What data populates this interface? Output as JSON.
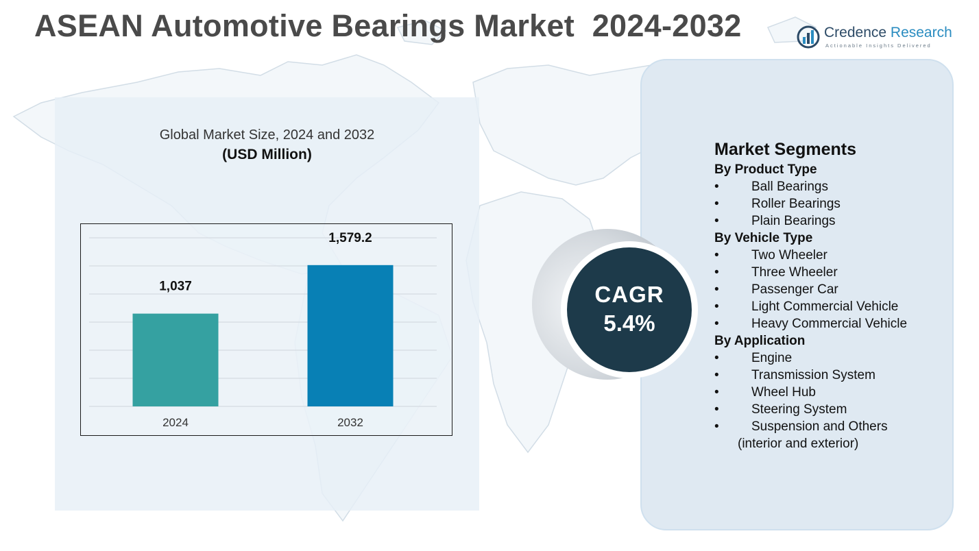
{
  "title": "ASEAN Automotive Bearings Market  2024-2032",
  "brand": {
    "name_part1": "Credence",
    "name_part2": " Research",
    "tagline": "Actionable Insights Delivered",
    "colors": {
      "primary": "#2c4a66",
      "accent": "#2a8cc0"
    }
  },
  "chart_data": {
    "type": "bar",
    "title": "Global Market Size, 2024 and 2032",
    "subtitle": "(USD Million)",
    "categories": [
      "2024",
      "2032"
    ],
    "values": [
      1037,
      1579.2
    ],
    "value_labels": [
      "1,037",
      "1,579.2"
    ],
    "bar_colors": [
      "#35a1a1",
      "#0880b5"
    ],
    "ylim": [
      0,
      1800
    ],
    "grid": true,
    "legend": "none"
  },
  "cagr": {
    "label": "CAGR",
    "value": "5.4%",
    "color": "#1d3a4a"
  },
  "segments": {
    "heading": "Market Segments",
    "bullet": "•",
    "groups": [
      {
        "title": "By Product Type",
        "items": [
          "Ball Bearings",
          "Roller Bearings",
          "Plain Bearings"
        ]
      },
      {
        "title": "By Vehicle Type",
        "items": [
          "Two Wheeler",
          "Three Wheeler",
          "Passenger Car",
          "Light Commercial Vehicle",
          "Heavy Commercial Vehicle"
        ]
      },
      {
        "title": "By Application",
        "items": [
          "Engine",
          "Transmission System",
          "Wheel Hub",
          "Steering System",
          "Suspension and Others"
        ],
        "note": "(interior and exterior)"
      }
    ]
  }
}
